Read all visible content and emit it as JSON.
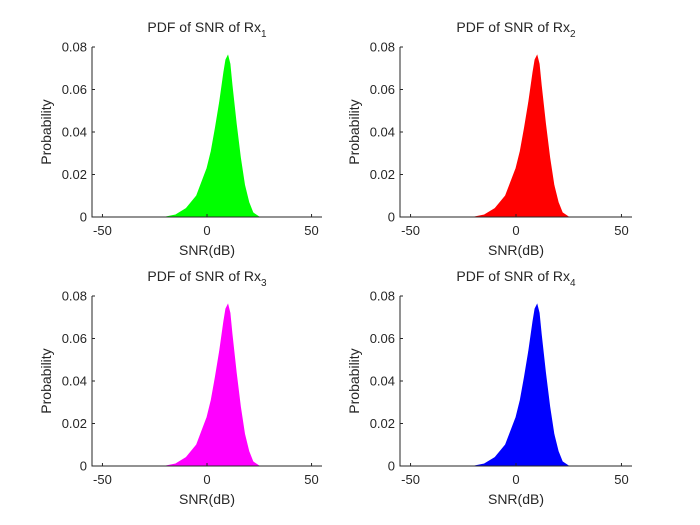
{
  "chart_data": [
    {
      "type": "area",
      "title": "PDF of SNR of Rx",
      "title_subscript": "1",
      "xlabel": "SNR(dB)",
      "ylabel": "Probability",
      "xlim": [
        -55,
        55
      ],
      "ylim": [
        0,
        0.08
      ],
      "xticks": [
        -50,
        0,
        50
      ],
      "yticks": [
        0,
        0.02,
        0.04,
        0.06,
        0.08
      ],
      "color": "#00ff00",
      "x": [
        -20,
        -15,
        -10,
        -5,
        0,
        2,
        4,
        6,
        8,
        9,
        10,
        11,
        12,
        14,
        16,
        18,
        20,
        22,
        25
      ],
      "y": [
        0,
        0.001,
        0.004,
        0.01,
        0.023,
        0.031,
        0.042,
        0.054,
        0.068,
        0.074,
        0.076,
        0.072,
        0.062,
        0.044,
        0.028,
        0.015,
        0.007,
        0.002,
        0
      ]
    },
    {
      "type": "area",
      "title": "PDF of SNR of Rx",
      "title_subscript": "2",
      "xlabel": "SNR(dB)",
      "ylabel": "Probability",
      "xlim": [
        -55,
        55
      ],
      "ylim": [
        0,
        0.08
      ],
      "xticks": [
        -50,
        0,
        50
      ],
      "yticks": [
        0,
        0.02,
        0.04,
        0.06,
        0.08
      ],
      "color": "#ff0000",
      "x": [
        -20,
        -15,
        -10,
        -5,
        0,
        2,
        4,
        6,
        8,
        9,
        10,
        11,
        12,
        14,
        16,
        18,
        20,
        22,
        25
      ],
      "y": [
        0,
        0.001,
        0.004,
        0.01,
        0.023,
        0.031,
        0.042,
        0.054,
        0.068,
        0.074,
        0.076,
        0.072,
        0.062,
        0.044,
        0.028,
        0.015,
        0.007,
        0.002,
        0
      ]
    },
    {
      "type": "area",
      "title": "PDF of SNR of Rx",
      "title_subscript": "3",
      "xlabel": "SNR(dB)",
      "ylabel": "Probability",
      "xlim": [
        -55,
        55
      ],
      "ylim": [
        0,
        0.08
      ],
      "xticks": [
        -50,
        0,
        50
      ],
      "yticks": [
        0,
        0.02,
        0.04,
        0.06,
        0.08
      ],
      "color": "#ff00ff",
      "x": [
        -20,
        -15,
        -10,
        -5,
        0,
        2,
        4,
        6,
        8,
        9,
        10,
        11,
        12,
        14,
        16,
        18,
        20,
        22,
        25
      ],
      "y": [
        0,
        0.001,
        0.004,
        0.01,
        0.023,
        0.031,
        0.042,
        0.054,
        0.068,
        0.074,
        0.076,
        0.072,
        0.062,
        0.044,
        0.028,
        0.015,
        0.007,
        0.002,
        0
      ]
    },
    {
      "type": "area",
      "title": "PDF of SNR of Rx",
      "title_subscript": "4",
      "xlabel": "SNR(dB)",
      "ylabel": "Probability",
      "xlim": [
        -55,
        55
      ],
      "ylim": [
        0,
        0.08
      ],
      "xticks": [
        -50,
        0,
        50
      ],
      "yticks": [
        0,
        0.02,
        0.04,
        0.06,
        0.08
      ],
      "color": "#0000ff",
      "x": [
        -20,
        -15,
        -10,
        -5,
        0,
        2,
        4,
        6,
        8,
        9,
        10,
        11,
        12,
        14,
        16,
        18,
        20,
        22,
        25
      ],
      "y": [
        0,
        0.001,
        0.004,
        0.01,
        0.023,
        0.031,
        0.042,
        0.054,
        0.068,
        0.074,
        0.076,
        0.072,
        0.062,
        0.044,
        0.028,
        0.015,
        0.007,
        0.002,
        0
      ]
    }
  ]
}
